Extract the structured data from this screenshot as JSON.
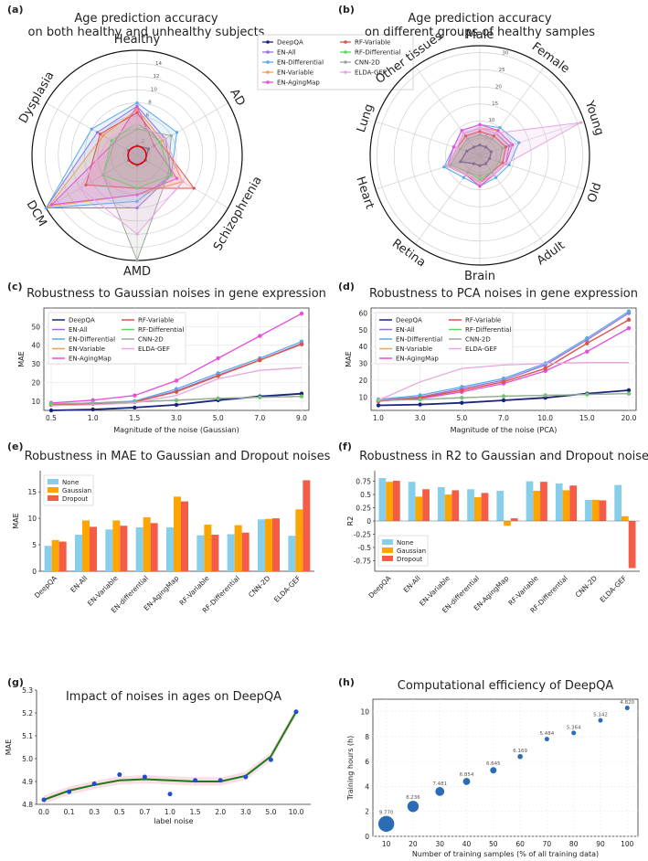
{
  "colors": {
    "DeepQA": "#1a237e",
    "EN-All": "#9c6fd6",
    "EN-Differential": "#5ca8e8",
    "EN-Variable": "#f5a04a",
    "EN-AgingMap": "#e64ddc",
    "RF-Variable": "#d9534f",
    "RF-Differential": "#5cd65c",
    "CNN-2D": "#9aa89a",
    "ELDA-GEF": "#e8a6e0",
    "None": "#87ceeb",
    "Gaussian": "#ffa500",
    "Dropout": "#f55c47",
    "fit": "#1a7a1a",
    "scatter": "#1f4fcf",
    "bubble": "#2a6db5"
  },
  "chart_data": [
    {
      "id": "a",
      "type": "radar",
      "panel_label": "(a)",
      "title": "Age prediction accuracy\non both healthy and unhealthy subjects",
      "axes": [
        "Healthy",
        "AD",
        "Schizophrenia",
        "AMD",
        "DCM",
        "Dysplasia"
      ],
      "rmax": 16,
      "ticks": [
        2,
        4,
        6,
        8,
        10,
        12,
        14
      ],
      "series": [
        {
          "name": "DeepQA",
          "values": [
            1.5,
            2,
            1.5,
            1.5,
            1.5,
            1.5
          ]
        },
        {
          "name": "EN-All",
          "values": [
            7.5,
            5,
            6,
            8,
            16,
            7
          ]
        },
        {
          "name": "EN-Differential",
          "values": [
            8,
            7,
            6,
            7,
            16,
            8
          ]
        },
        {
          "name": "EN-Variable",
          "values": [
            7,
            4.5,
            8,
            6,
            15.5,
            6
          ]
        },
        {
          "name": "EN-AgingMap",
          "values": [
            7.5,
            3,
            7,
            6,
            15,
            4
          ]
        },
        {
          "name": "RF-Variable",
          "values": [
            6.5,
            4,
            10,
            5,
            9,
            6.5
          ]
        },
        {
          "name": "RF-Differential",
          "values": [
            5,
            4,
            6,
            5,
            6,
            4.5
          ]
        },
        {
          "name": "CNN-2D",
          "values": [
            4,
            6,
            5.5,
            16,
            6,
            4
          ]
        },
        {
          "name": "ELDA-GEF",
          "values": [
            5,
            5,
            8,
            12,
            10,
            5
          ]
        }
      ],
      "legend": [
        "DeepQA",
        "EN-All",
        "EN-Differential",
        "EN-Variable",
        "EN-AgingMap",
        "RF-Variable",
        "RF-Differential",
        "CNN-2D",
        "ELDA-GEF"
      ]
    },
    {
      "id": "b",
      "type": "radar",
      "panel_label": "(b)",
      "title": "Age prediction accuracy\non different groups of healthy samples",
      "axes": [
        "Male",
        "Female",
        "Young",
        "Old",
        "Adult",
        "Brain",
        "Retina",
        "Heart",
        "Lung",
        "Other tissues"
      ],
      "rmax": 32,
      "ticks": [
        5,
        10,
        15,
        20,
        25,
        30
      ],
      "series": [
        {
          "name": "DeepQA",
          "values": [
            3,
            3,
            3.5,
            3,
            3,
            3,
            3,
            6,
            4,
            3
          ]
        },
        {
          "name": "EN-All",
          "values": [
            8,
            8,
            9,
            8,
            7,
            8,
            7,
            10,
            7,
            8
          ]
        },
        {
          "name": "EN-Differential",
          "values": [
            9,
            10,
            12,
            9,
            8,
            9,
            8,
            11,
            8,
            9
          ]
        },
        {
          "name": "EN-Variable",
          "values": [
            8,
            9,
            10,
            8,
            7,
            9,
            7,
            10,
            7,
            8
          ]
        },
        {
          "name": "EN-AgingMap",
          "values": [
            9,
            9,
            10,
            8,
            7,
            9,
            7,
            10,
            8,
            9
          ]
        },
        {
          "name": "RF-Variable",
          "values": [
            7,
            7,
            8,
            7,
            6,
            8,
            7,
            10,
            7,
            7
          ]
        },
        {
          "name": "RF-Differential",
          "values": [
            6,
            6,
            7,
            6,
            6,
            7,
            6,
            9,
            6,
            6
          ]
        },
        {
          "name": "CNN-2D",
          "values": [
            6,
            6,
            7,
            6,
            6,
            6,
            6,
            9,
            6,
            6
          ]
        },
        {
          "name": "ELDA-GEF",
          "values": [
            8,
            8,
            31,
            8,
            7,
            8,
            7,
            10,
            7,
            8
          ]
        }
      ]
    },
    {
      "id": "c",
      "type": "line",
      "panel_label": "(c)",
      "title": "Robustness to Gaussian noises in gene expression",
      "xlabel": "Magnitude of the noise (Gaussian)",
      "ylabel": "MAE",
      "categories": [
        "0.5",
        "1.0",
        "1.5",
        "3.0",
        "5.0",
        "7.0",
        "9.0"
      ],
      "ylim": [
        5,
        60
      ],
      "yticks": [
        10,
        20,
        30,
        40,
        50
      ],
      "series": [
        {
          "name": "DeepQA",
          "values": [
            5,
            5.5,
            6.5,
            8,
            10.5,
            12.5,
            14
          ]
        },
        {
          "name": "EN-All",
          "values": [
            8,
            8.5,
            9.5,
            15.5,
            24,
            32,
            41
          ]
        },
        {
          "name": "EN-Differential",
          "values": [
            8.5,
            9,
            10,
            16.5,
            25,
            33,
            42
          ]
        },
        {
          "name": "EN-Variable",
          "values": [
            8,
            8.5,
            9.5,
            15,
            23.5,
            32,
            40.5
          ]
        },
        {
          "name": "EN-AgingMap",
          "values": [
            9,
            10.5,
            13,
            21,
            33,
            45,
            57
          ]
        },
        {
          "name": "RF-Variable",
          "values": [
            8,
            8.5,
            9.5,
            15,
            23.5,
            32,
            40.5
          ]
        },
        {
          "name": "RF-Differential",
          "values": [
            8.5,
            9,
            9.5,
            10.5,
            11.5,
            12,
            12.5
          ]
        },
        {
          "name": "CNN-2D",
          "values": [
            8.5,
            9,
            9.5,
            10.5,
            11.5,
            12,
            12.5
          ]
        },
        {
          "name": "ELDA-GEF",
          "values": [
            7.5,
            8,
            9,
            13,
            22,
            26.5,
            28
          ]
        }
      ]
    },
    {
      "id": "d",
      "type": "line",
      "panel_label": "(d)",
      "title": "Robustness to PCA noises in gene expression",
      "xlabel": "Magnitude of the noise (PCA)",
      "ylabel": "MAE",
      "categories": [
        "1.0",
        "3.0",
        "5.0",
        "7.0",
        "10.0",
        "15.0",
        "20.0"
      ],
      "ylim": [
        2,
        63
      ],
      "yticks": [
        10,
        20,
        30,
        40,
        50,
        60
      ],
      "series": [
        {
          "name": "DeepQA",
          "values": [
            5,
            5.5,
            6.5,
            8,
            9.5,
            12,
            14
          ]
        },
        {
          "name": "EN-All",
          "values": [
            8,
            10,
            15,
            20,
            29,
            44,
            60
          ]
        },
        {
          "name": "EN-Differential",
          "values": [
            8.5,
            11,
            16,
            21,
            30,
            45,
            61
          ]
        },
        {
          "name": "EN-Variable",
          "values": [
            7.5,
            9.5,
            14,
            19,
            27,
            42,
            56
          ]
        },
        {
          "name": "EN-AgingMap",
          "values": [
            7.5,
            9,
            13,
            18,
            25.5,
            37,
            51
          ]
        },
        {
          "name": "RF-Variable",
          "values": [
            7.5,
            9.5,
            14,
            19,
            27,
            42,
            56
          ]
        },
        {
          "name": "RF-Differential",
          "values": [
            8,
            8.5,
            9.5,
            10.5,
            11,
            11.5,
            12
          ]
        },
        {
          "name": "CNN-2D",
          "values": [
            8,
            8.5,
            9.5,
            10.5,
            11,
            11.5,
            12
          ]
        },
        {
          "name": "ELDA-GEF",
          "values": [
            8,
            19,
            27,
            29,
            30,
            30.5,
            30.5
          ]
        }
      ]
    },
    {
      "id": "e",
      "type": "bar",
      "panel_label": "(e)",
      "title": "Robustness in MAE to Gaussian and Dropout noises",
      "ylabel": "MAE",
      "ylim": [
        0,
        19
      ],
      "yticks": [
        0,
        5,
        10,
        15
      ],
      "categories": [
        "DeepQA",
        "EN-All",
        "EN-Variable",
        "EN-differential",
        "EN-AgingMap",
        "RF-Variable",
        "RF-Differential",
        "CNN-2D",
        "ELDA-GEF"
      ],
      "series": [
        {
          "name": "None",
          "values": [
            4.8,
            6.9,
            7.9,
            8.3,
            8.3,
            6.8,
            7.0,
            9.8,
            6.7
          ]
        },
        {
          "name": "Gaussian",
          "values": [
            5.9,
            9.6,
            9.6,
            10.2,
            14.1,
            8.8,
            8.7,
            9.9,
            11.7
          ]
        },
        {
          "name": "Dropout",
          "values": [
            5.6,
            8.4,
            8.6,
            9.1,
            13.2,
            6.9,
            7.3,
            10.0,
            17.2
          ]
        }
      ]
    },
    {
      "id": "f",
      "type": "bar",
      "panel_label": "(f)",
      "title": "Robustness in R2 to Gaussian and Dropout noises",
      "ylabel": "R2",
      "ylim": [
        -0.95,
        0.95
      ],
      "yticks": [
        -0.75,
        -0.5,
        -0.25,
        0.0,
        0.25,
        0.5,
        0.75
      ],
      "categories": [
        "DeepQA",
        "EN-All",
        "EN-Variable",
        "EN-differential",
        "EN-AgingMap",
        "RF-Variable",
        "RF-Differential",
        "CNN-2D",
        "ELDA-GEF"
      ],
      "series": [
        {
          "name": "None",
          "values": [
            0.81,
            0.74,
            0.64,
            0.6,
            0.57,
            0.75,
            0.71,
            0.4,
            0.68
          ]
        },
        {
          "name": "Gaussian",
          "values": [
            0.74,
            0.46,
            0.5,
            0.45,
            -0.09,
            0.57,
            0.58,
            0.4,
            0.09
          ]
        },
        {
          "name": "Dropout",
          "values": [
            0.76,
            0.6,
            0.58,
            0.53,
            0.05,
            0.74,
            0.67,
            0.39,
            -0.89
          ]
        }
      ]
    },
    {
      "id": "g",
      "type": "scatter",
      "panel_label": "(g)",
      "title": "Impact of noises in ages on DeepQA",
      "xlabel": "label noise",
      "ylabel": "MAE",
      "categories": [
        "0.0",
        "0.1",
        "0.3",
        "0.5",
        "0.7",
        "1.0",
        "1.5",
        "2.0",
        "3.0",
        "5.0",
        "10.0"
      ],
      "ylim": [
        4.8,
        5.3
      ],
      "yticks": [
        4.8,
        4.9,
        5.0,
        5.1,
        5.2,
        5.3
      ],
      "values": [
        4.82,
        4.855,
        4.89,
        4.93,
        4.92,
        4.845,
        4.905,
        4.905,
        4.92,
        4.995,
        5.205
      ],
      "fit": [
        4.82,
        4.86,
        4.885,
        4.905,
        4.91,
        4.905,
        4.9,
        4.9,
        4.925,
        5.01,
        5.205
      ]
    },
    {
      "id": "h",
      "type": "scatter",
      "panel_label": "(h)",
      "title": "Computational efficiency of DeepQA",
      "xlabel": "Number of training samples (% of all training data)",
      "ylabel": "Training hours (h)",
      "x": [
        10,
        20,
        30,
        40,
        50,
        60,
        70,
        80,
        90,
        100
      ],
      "values": [
        1.0,
        2.4,
        3.6,
        4.4,
        5.3,
        6.4,
        7.8,
        8.3,
        9.3,
        10.3
      ],
      "labels": [
        "9.770",
        "8.236",
        "7.481",
        "6.854",
        "6.645",
        "6.169",
        "5.484",
        "5.364",
        "5.142",
        "4.820"
      ],
      "xlim": [
        5,
        104
      ],
      "ylim": [
        0,
        11
      ],
      "yticks": [
        0,
        2,
        4,
        6,
        8,
        10
      ],
      "xticks": [
        10,
        20,
        30,
        40,
        50,
        60,
        70,
        80,
        90,
        100
      ]
    }
  ]
}
